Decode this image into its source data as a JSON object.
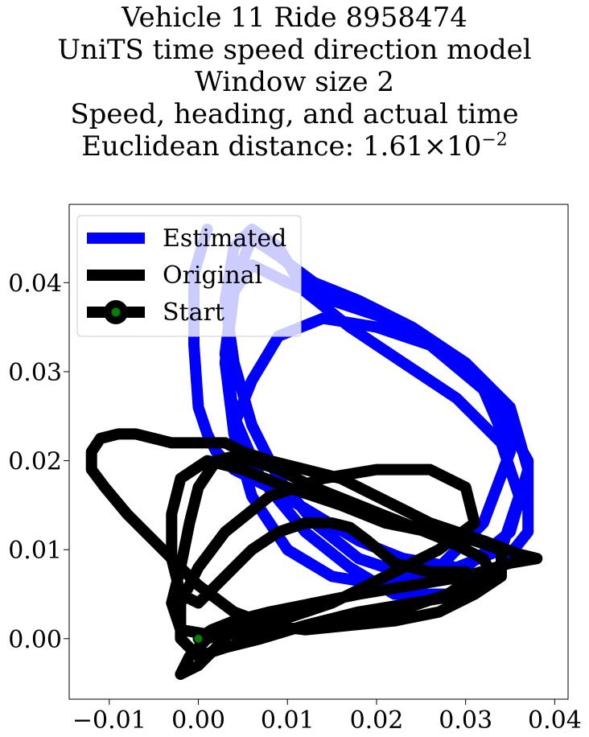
{
  "title_lines": [
    "Vehicle 11 Ride 8958474",
    "UniTS time speed direction model",
    "Window size 2",
    "Speed, heading, and actual time",
    "Euclidean distance: 1.61"
  ],
  "title_sci": {
    "times": "×",
    "base": "10",
    "exponent": "−2"
  },
  "chart_data": {
    "type": "line",
    "title": "Vehicle 11 Ride 8958474\nUniTS time speed direction model\nWindow size 2\nSpeed, heading, and actual time\nEuclidean distance: 1.61×10^-2",
    "xlabel": "",
    "ylabel": "",
    "xlim": [
      -0.0145,
      0.0415
    ],
    "ylim": [
      -0.0068,
      0.0488
    ],
    "xticks": [
      -0.01,
      0.0,
      0.01,
      0.02,
      0.03,
      0.04
    ],
    "xtick_labels": [
      "−0.01",
      "0.00",
      "0.01",
      "0.02",
      "0.03",
      "0.04"
    ],
    "yticks": [
      0.0,
      0.01,
      0.02,
      0.03,
      0.04
    ],
    "ytick_labels": [
      "0.00",
      "0.01",
      "0.02",
      "0.03",
      "0.04"
    ],
    "grid": false,
    "legend_position": "top-left",
    "series": [
      {
        "name": "Estimated",
        "color": "#0000ff",
        "x": [
          0.001,
          -0.0005,
          -0.0005,
          0.0,
          0.001,
          0.002,
          0.004,
          0.008,
          0.013,
          0.018,
          0.023,
          0.029,
          0.034,
          0.036,
          0.034,
          0.029,
          0.023,
          0.017,
          0.012,
          0.009,
          0.006,
          0.004,
          0.003,
          0.004,
          0.006,
          0.009,
          0.013,
          0.018,
          0.024,
          0.03,
          0.035,
          0.037,
          0.035,
          0.03,
          0.024,
          0.018,
          0.013,
          0.009,
          0.006,
          0.004,
          0.003,
          0.004,
          0.007,
          0.012,
          0.017,
          0.022,
          0.028,
          0.033,
          0.037,
          0.037,
          0.033,
          0.027,
          0.021,
          0.015,
          0.01,
          0.006,
          0.004,
          0.003,
          0.004,
          0.006,
          0.01,
          0.015,
          0.021,
          0.027,
          0.032,
          0.035,
          0.032,
          0.026,
          0.02,
          0.014,
          0.009,
          0.006,
          0.004
        ],
        "y": [
          0.046,
          0.041,
          0.033,
          0.026,
          0.023,
          0.021,
          0.019,
          0.017,
          0.014,
          0.011,
          0.009,
          0.008,
          0.01,
          0.016,
          0.022,
          0.027,
          0.031,
          0.035,
          0.039,
          0.044,
          0.046,
          0.044,
          0.038,
          0.031,
          0.024,
          0.018,
          0.013,
          0.009,
          0.007,
          0.008,
          0.012,
          0.019,
          0.026,
          0.031,
          0.035,
          0.038,
          0.04,
          0.043,
          0.045,
          0.04,
          0.032,
          0.025,
          0.018,
          0.012,
          0.008,
          0.005,
          0.005,
          0.007,
          0.012,
          0.02,
          0.027,
          0.033,
          0.036,
          0.038,
          0.04,
          0.042,
          0.039,
          0.031,
          0.023,
          0.016,
          0.01,
          0.007,
          0.006,
          0.008,
          0.013,
          0.021,
          0.028,
          0.033,
          0.035,
          0.036,
          0.034,
          0.029,
          0.024
        ]
      },
      {
        "name": "Original",
        "color": "#000000",
        "x": [
          0.0,
          0.0015,
          0.004,
          0.008,
          0.013,
          0.018,
          0.024,
          0.03,
          0.035,
          0.038,
          0.036,
          0.032,
          0.029,
          0.026,
          0.024,
          0.02,
          0.016,
          0.012,
          0.008,
          0.005,
          0.003,
          0.001,
          -0.001,
          -0.003,
          -0.005,
          -0.007,
          -0.009,
          -0.011,
          -0.012,
          -0.012,
          -0.0105,
          -0.008,
          -0.004,
          0.0,
          0.004,
          0.008,
          0.012,
          0.017,
          0.022,
          0.027,
          0.031,
          0.034,
          0.034,
          0.031,
          0.026,
          0.021,
          0.016,
          0.01,
          0.005,
          0.001,
          -0.002,
          -0.003,
          -0.003,
          -0.002,
          0.0,
          0.001,
          0.002,
          0.004,
          0.006,
          0.009,
          0.012,
          0.015,
          0.017,
          0.019,
          0.022,
          0.026,
          0.03,
          0.031,
          0.028,
          0.022,
          0.016,
          0.01,
          0.005,
          0.001,
          -0.002,
          -0.003,
          -0.002,
          -0.001,
          0.0,
          0.002,
          0.004,
          0.006,
          0.009,
          0.013,
          0.018,
          0.023,
          0.028,
          0.032,
          0.033,
          0.03,
          0.024,
          0.018,
          0.012,
          0.007,
          0.003,
          0.0,
          -0.002,
          -0.002,
          0.0,
          0.003,
          0.008,
          0.014,
          0.02,
          0.026,
          0.03,
          0.031,
          0.027,
          0.021,
          0.015,
          0.009,
          0.004,
          0.001,
          -0.001,
          -0.002,
          -0.002,
          0.0,
          0.002,
          0.003
        ],
        "y": [
          0.0,
          0.001,
          0.002,
          0.003,
          0.004,
          0.005,
          0.006,
          0.007,
          0.0085,
          0.009,
          0.0095,
          0.011,
          0.012,
          0.013,
          0.014,
          0.016,
          0.018,
          0.019,
          0.02,
          0.021,
          0.022,
          0.022,
          0.022,
          0.022,
          0.0225,
          0.023,
          0.023,
          0.0225,
          0.021,
          0.019,
          0.017,
          0.014,
          0.01,
          0.006,
          0.003,
          0.0015,
          0.001,
          0.0015,
          0.002,
          0.003,
          0.005,
          0.007,
          0.01,
          0.011,
          0.012,
          0.013,
          0.015,
          0.017,
          0.019,
          0.02,
          0.018,
          0.014,
          0.009,
          0.005,
          0.004,
          0.005,
          0.006,
          0.008,
          0.01,
          0.012,
          0.013,
          0.013,
          0.0125,
          0.011,
          0.0085,
          0.0075,
          0.0075,
          0.007,
          0.005,
          0.003,
          0.002,
          0.001,
          0.0005,
          0.0005,
          0.001,
          0.004,
          0.008,
          0.013,
          0.017,
          0.02,
          0.0205,
          0.02,
          0.019,
          0.017,
          0.015,
          0.013,
          0.011,
          0.009,
          0.007,
          0.005,
          0.004,
          0.003,
          0.0015,
          0.0,
          -0.001,
          -0.002,
          0.0,
          0.004,
          0.008,
          0.012,
          0.016,
          0.018,
          0.019,
          0.019,
          0.017,
          0.013,
          0.01,
          0.007,
          0.004,
          0.002,
          0.001,
          0.0,
          -0.002,
          -0.004,
          -0.004,
          -0.003,
          -0.001,
          0.0
        ]
      },
      {
        "name": "Start",
        "color": "#000000",
        "marker_color": "#008000",
        "x": [
          0.0
        ],
        "y": [
          0.0
        ]
      }
    ]
  }
}
